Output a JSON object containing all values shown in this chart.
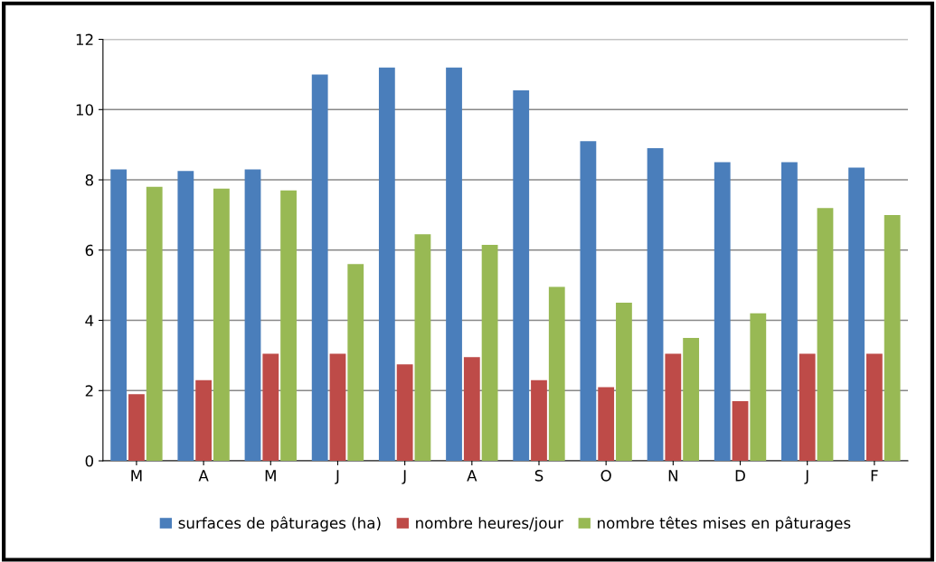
{
  "chart_data": {
    "type": "bar",
    "categories": [
      "M",
      "A",
      "M",
      "J",
      "J",
      "A",
      "S",
      "O",
      "N",
      "D",
      "J",
      "F"
    ],
    "series": [
      {
        "name": "surfaces de pâturages (ha)",
        "color": "#4a7ebb",
        "values": [
          8.3,
          8.25,
          8.3,
          11.0,
          11.2,
          11.2,
          10.55,
          9.1,
          8.9,
          8.5,
          8.5,
          8.35
        ]
      },
      {
        "name": "nombre heures/jour",
        "color": "#be4b48",
        "values": [
          1.9,
          2.3,
          3.05,
          3.05,
          2.75,
          2.95,
          2.3,
          2.1,
          3.05,
          1.7,
          3.05,
          3.05
        ]
      },
      {
        "name": "nombre têtes mises en pâturages",
        "color": "#98b954",
        "values": [
          7.8,
          7.75,
          7.7,
          5.6,
          6.45,
          6.15,
          4.95,
          4.5,
          3.5,
          4.2,
          7.2,
          7.0
        ]
      }
    ],
    "ylim": [
      0,
      12
    ],
    "yticks": [
      0,
      2,
      4,
      6,
      8,
      10,
      12
    ],
    "grid": "y",
    "legend": "bottom"
  }
}
